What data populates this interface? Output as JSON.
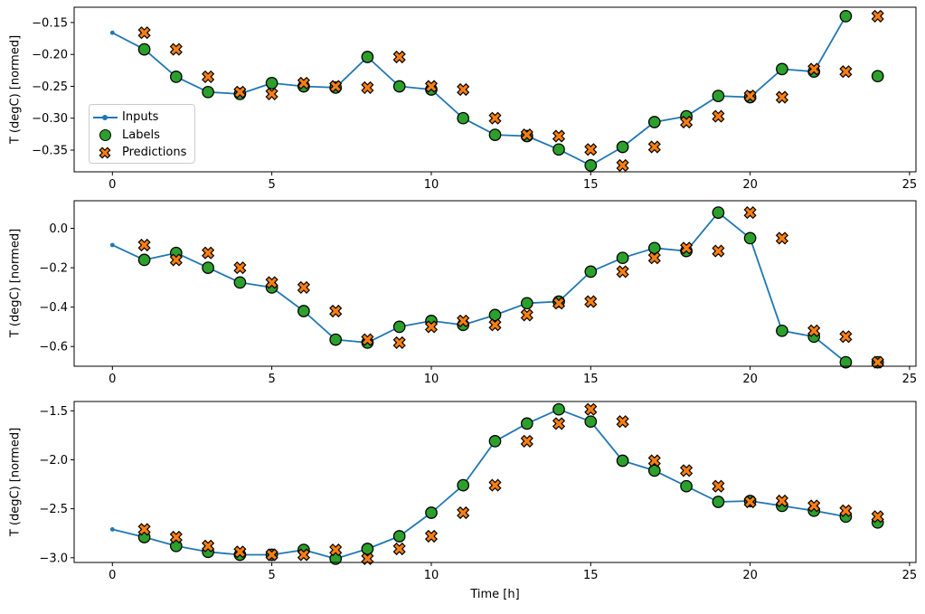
{
  "figure": {
    "xlabel": "Time [h]",
    "ylabel": "T (degC) [normed]",
    "legend": {
      "inputs": "Inputs",
      "labels": "Labels",
      "predictions": "Predictions"
    },
    "colors": {
      "inputs": "#1f77b4",
      "labels": "#2ca02c",
      "predictions": "#ff7f0e",
      "edge": "#000000",
      "spine": "#000000"
    }
  },
  "chart_data": [
    {
      "type": "line",
      "title": "",
      "xlabel": "",
      "ylabel": "T (degC) [normed]",
      "xlim": [
        -1.2,
        25.2
      ],
      "ylim": [
        -0.384,
        -0.126
      ],
      "grid": false,
      "legend_position": "upper-left-inside",
      "show_legend": true,
      "xticks": [
        0,
        5,
        10,
        15,
        20,
        25
      ],
      "xtick_labels": [
        "0",
        "5",
        "10",
        "15",
        "20",
        "25"
      ],
      "yticks": [
        -0.15,
        -0.2,
        -0.25,
        -0.3,
        -0.35
      ],
      "ytick_labels": [
        "−0.15",
        "−0.20",
        "−0.25",
        "−0.30",
        "−0.35"
      ],
      "series": [
        {
          "name": "Inputs",
          "kind": "line-dot",
          "x": [
            0,
            1,
            2,
            3,
            4,
            5,
            6,
            7,
            8,
            9,
            10,
            11,
            12,
            13,
            14,
            15,
            16,
            17,
            18,
            19,
            20,
            21,
            22,
            23
          ],
          "values": [
            -0.166,
            -0.192,
            -0.235,
            -0.259,
            -0.262,
            -0.245,
            -0.25,
            -0.252,
            -0.204,
            -0.25,
            -0.255,
            -0.3,
            -0.326,
            -0.328,
            -0.349,
            -0.374,
            -0.345,
            -0.306,
            -0.297,
            -0.265,
            -0.267,
            -0.223,
            -0.227,
            -0.14
          ]
        },
        {
          "name": "Labels",
          "kind": "scatter-circle",
          "x": [
            1,
            2,
            3,
            4,
            5,
            6,
            7,
            8,
            9,
            10,
            11,
            12,
            13,
            14,
            15,
            16,
            17,
            18,
            19,
            20,
            21,
            22,
            23,
            24
          ],
          "values": [
            -0.192,
            -0.235,
            -0.259,
            -0.262,
            -0.245,
            -0.25,
            -0.252,
            -0.204,
            -0.25,
            -0.255,
            -0.3,
            -0.326,
            -0.328,
            -0.349,
            -0.374,
            -0.345,
            -0.306,
            -0.297,
            -0.265,
            -0.267,
            -0.223,
            -0.227,
            -0.14,
            -0.234
          ]
        },
        {
          "name": "Predictions",
          "kind": "scatter-x",
          "x": [
            1,
            2,
            3,
            4,
            5,
            6,
            7,
            8,
            9,
            10,
            11,
            12,
            13,
            14,
            15,
            16,
            17,
            18,
            19,
            20,
            21,
            22,
            23,
            24
          ],
          "values": [
            -0.166,
            -0.192,
            -0.235,
            -0.259,
            -0.262,
            -0.245,
            -0.25,
            -0.252,
            -0.204,
            -0.25,
            -0.255,
            -0.3,
            -0.326,
            -0.328,
            -0.349,
            -0.374,
            -0.345,
            -0.306,
            -0.297,
            -0.265,
            -0.267,
            -0.223,
            -0.227,
            -0.14
          ]
        }
      ]
    },
    {
      "type": "line",
      "title": "",
      "xlabel": "",
      "ylabel": "T (degC) [normed]",
      "xlim": [
        -1.2,
        25.2
      ],
      "ylim": [
        -0.7,
        0.14
      ],
      "grid": false,
      "show_legend": false,
      "xticks": [
        0,
        5,
        10,
        15,
        20,
        25
      ],
      "xtick_labels": [
        "0",
        "5",
        "10",
        "15",
        "20",
        "25"
      ],
      "yticks": [
        0.0,
        -0.2,
        -0.4,
        -0.6
      ],
      "ytick_labels": [
        "0.0",
        "−0.2",
        "−0.4",
        "−0.6"
      ],
      "series": [
        {
          "name": "Inputs",
          "kind": "line-dot",
          "x": [
            0,
            1,
            2,
            3,
            4,
            5,
            6,
            7,
            8,
            9,
            10,
            11,
            12,
            13,
            14,
            15,
            16,
            17,
            18,
            19,
            20,
            21,
            22,
            23
          ],
          "values": [
            -0.085,
            -0.16,
            -0.125,
            -0.2,
            -0.275,
            -0.3,
            -0.42,
            -0.565,
            -0.58,
            -0.5,
            -0.47,
            -0.49,
            -0.44,
            -0.38,
            -0.372,
            -0.22,
            -0.15,
            -0.1,
            -0.115,
            0.08,
            -0.05,
            -0.52,
            -0.55,
            -0.68
          ]
        },
        {
          "name": "Labels",
          "kind": "scatter-circle",
          "x": [
            1,
            2,
            3,
            4,
            5,
            6,
            7,
            8,
            9,
            10,
            11,
            12,
            13,
            14,
            15,
            16,
            17,
            18,
            19,
            20,
            21,
            22,
            23,
            24
          ],
          "values": [
            -0.16,
            -0.125,
            -0.2,
            -0.275,
            -0.3,
            -0.42,
            -0.565,
            -0.58,
            -0.5,
            -0.47,
            -0.49,
            -0.44,
            -0.38,
            -0.372,
            -0.22,
            -0.15,
            -0.1,
            -0.115,
            0.08,
            -0.05,
            -0.52,
            -0.55,
            -0.68,
            -0.68
          ]
        },
        {
          "name": "Predictions",
          "kind": "scatter-x",
          "x": [
            1,
            2,
            3,
            4,
            5,
            6,
            7,
            8,
            9,
            10,
            11,
            12,
            13,
            14,
            15,
            16,
            17,
            18,
            19,
            20,
            21,
            22,
            23,
            24
          ],
          "values": [
            -0.085,
            -0.16,
            -0.125,
            -0.2,
            -0.275,
            -0.3,
            -0.42,
            -0.565,
            -0.58,
            -0.5,
            -0.47,
            -0.49,
            -0.44,
            -0.38,
            -0.372,
            -0.22,
            -0.15,
            -0.1,
            -0.115,
            0.08,
            -0.05,
            -0.52,
            -0.55,
            -0.68
          ]
        }
      ]
    },
    {
      "type": "line",
      "title": "",
      "xlabel": "Time [h]",
      "ylabel": "T (degC) [normed]",
      "xlim": [
        -1.2,
        25.2
      ],
      "ylim": [
        -3.048,
        -1.405
      ],
      "grid": false,
      "show_legend": false,
      "xticks": [
        0,
        5,
        10,
        15,
        20,
        25
      ],
      "xtick_labels": [
        "0",
        "5",
        "10",
        "15",
        "20",
        "25"
      ],
      "yticks": [
        -1.5,
        -2.0,
        -2.5,
        -3.0
      ],
      "ytick_labels": [
        "−1.5",
        "−2.0",
        "−2.5",
        "−3.0"
      ],
      "series": [
        {
          "name": "Inputs",
          "kind": "line-dot",
          "x": [
            0,
            1,
            2,
            3,
            4,
            5,
            6,
            7,
            8,
            9,
            10,
            11,
            12,
            13,
            14,
            15,
            16,
            17,
            18,
            19,
            20,
            21,
            22,
            23
          ],
          "values": [
            -2.71,
            -2.79,
            -2.88,
            -2.94,
            -2.97,
            -2.97,
            -2.92,
            -3.01,
            -2.91,
            -2.78,
            -2.54,
            -2.26,
            -1.81,
            -1.63,
            -1.485,
            -1.61,
            -2.01,
            -2.11,
            -2.27,
            -2.43,
            -2.42,
            -2.47,
            -2.52,
            -2.58
          ]
        },
        {
          "name": "Labels",
          "kind": "scatter-circle",
          "x": [
            1,
            2,
            3,
            4,
            5,
            6,
            7,
            8,
            9,
            10,
            11,
            12,
            13,
            14,
            15,
            16,
            17,
            18,
            19,
            20,
            21,
            22,
            23,
            24
          ],
          "values": [
            -2.79,
            -2.88,
            -2.94,
            -2.97,
            -2.97,
            -2.92,
            -3.01,
            -2.91,
            -2.78,
            -2.54,
            -2.26,
            -1.81,
            -1.63,
            -1.485,
            -1.61,
            -2.01,
            -2.11,
            -2.27,
            -2.43,
            -2.42,
            -2.47,
            -2.52,
            -2.58,
            -2.64
          ]
        },
        {
          "name": "Predictions",
          "kind": "scatter-x",
          "x": [
            1,
            2,
            3,
            4,
            5,
            6,
            7,
            8,
            9,
            10,
            11,
            12,
            13,
            14,
            15,
            16,
            17,
            18,
            19,
            20,
            21,
            22,
            23,
            24
          ],
          "values": [
            -2.71,
            -2.79,
            -2.88,
            -2.94,
            -2.97,
            -2.97,
            -2.92,
            -3.01,
            -2.91,
            -2.78,
            -2.54,
            -2.26,
            -1.81,
            -1.63,
            -1.485,
            -1.61,
            -2.01,
            -2.11,
            -2.27,
            -2.43,
            -2.42,
            -2.47,
            -2.52,
            -2.58
          ]
        }
      ]
    }
  ]
}
